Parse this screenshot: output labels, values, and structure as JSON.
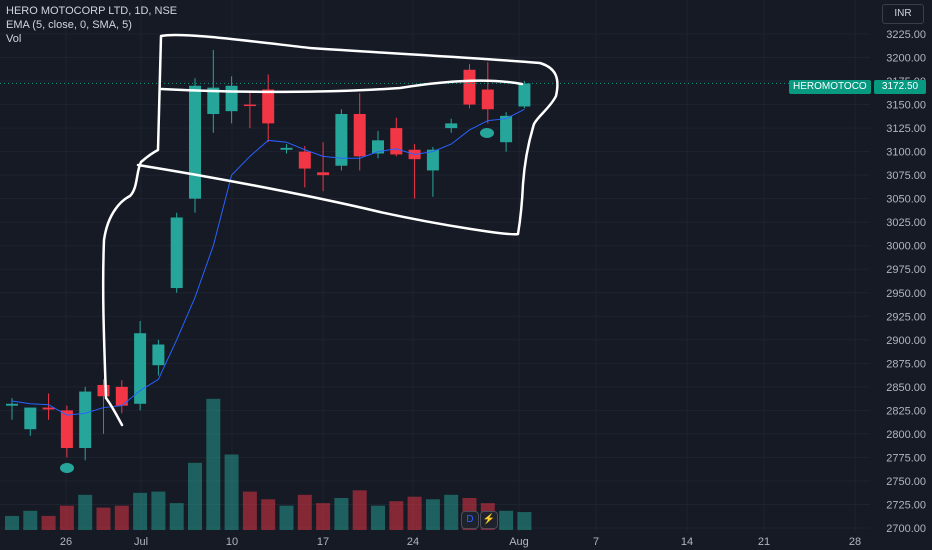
{
  "legend": {
    "title": "HERO MOTOCORP LTD, 1D, NSE",
    "ema": "EMA (5, close, 0, SMA, 5)",
    "vol": "Vol"
  },
  "currency": "INR",
  "symbol_tag": "HEROMOTOCO",
  "last_price": "3172.50",
  "colors": {
    "up": "#26a69a",
    "down": "#f23645",
    "ema": "#2962ff",
    "annotation": "#ffffff",
    "tag": "#089981"
  },
  "icons": [
    "dividend-icon",
    "earnings-flash-icon"
  ],
  "icon_labels": {
    "dividend": "D",
    "flash": "⚡"
  },
  "chart_data": {
    "type": "candlestick",
    "y_ticks": [
      "2700.00",
      "2725.00",
      "2750.00",
      "2775.00",
      "2800.00",
      "2825.00",
      "2850.00",
      "2875.00",
      "2900.00",
      "2925.00",
      "2950.00",
      "2975.00",
      "3000.00",
      "3025.00",
      "3050.00",
      "3075.00",
      "3100.00",
      "3125.00",
      "3150.00",
      "3175.00",
      "3200.00",
      "3225.00"
    ],
    "ylim": [
      2700,
      3237
    ],
    "x_ticks": [
      "26",
      "Jul",
      "10",
      "17",
      "24",
      "Aug",
      "7",
      "14",
      "21",
      "28"
    ],
    "candles": [
      {
        "o": 2830,
        "h": 2838,
        "l": 2815,
        "c": 2832
      },
      {
        "o": 2805,
        "h": 2828,
        "l": 2798,
        "c": 2828
      },
      {
        "o": 2828,
        "h": 2843,
        "l": 2815,
        "c": 2826
      },
      {
        "o": 2825,
        "h": 2830,
        "l": 2775,
        "c": 2785
      },
      {
        "o": 2785,
        "h": 2850,
        "l": 2772,
        "c": 2845
      },
      {
        "o": 2852,
        "h": 2858,
        "l": 2800,
        "c": 2840
      },
      {
        "o": 2850,
        "h": 2857,
        "l": 2822,
        "c": 2830
      },
      {
        "o": 2832,
        "h": 2920,
        "l": 2825,
        "c": 2907
      },
      {
        "o": 2873,
        "h": 2900,
        "l": 2862,
        "c": 2895
      },
      {
        "o": 2955,
        "h": 3035,
        "l": 2950,
        "c": 3030
      },
      {
        "o": 3050,
        "h": 3178,
        "l": 3035,
        "c": 3170
      },
      {
        "o": 3140,
        "h": 3208,
        "l": 3120,
        "c": 3168
      },
      {
        "o": 3143,
        "h": 3180,
        "l": 3130,
        "c": 3170
      },
      {
        "o": 3150,
        "h": 3165,
        "l": 3125,
        "c": 3149
      },
      {
        "o": 3166,
        "h": 3182,
        "l": 3110,
        "c": 3130
      },
      {
        "o": 3102,
        "h": 3108,
        "l": 3098,
        "c": 3104
      },
      {
        "o": 3100,
        "h": 3106,
        "l": 3062,
        "c": 3082
      },
      {
        "o": 3078,
        "h": 3110,
        "l": 3058,
        "c": 3075
      },
      {
        "o": 3085,
        "h": 3145,
        "l": 3080,
        "c": 3140
      },
      {
        "o": 3140,
        "h": 3162,
        "l": 3080,
        "c": 3095
      },
      {
        "o": 3098,
        "h": 3122,
        "l": 3093,
        "c": 3112
      },
      {
        "o": 3125,
        "h": 3136,
        "l": 3095,
        "c": 3097
      },
      {
        "o": 3102,
        "h": 3108,
        "l": 3050,
        "c": 3092
      },
      {
        "o": 3080,
        "h": 3105,
        "l": 3052,
        "c": 3102
      },
      {
        "o": 3125,
        "h": 3135,
        "l": 3120,
        "c": 3130
      },
      {
        "o": 3187,
        "h": 3193,
        "l": 3146,
        "c": 3150
      },
      {
        "o": 3166,
        "h": 3195,
        "l": 3130,
        "c": 3145
      },
      {
        "o": 3110,
        "h": 3142,
        "l": 3100,
        "c": 3138
      },
      {
        "o": 3148,
        "h": 3175,
        "l": 3146,
        "c": 3172.5
      }
    ],
    "ema": [
      2835,
      2832,
      2831,
      2820,
      2822,
      2828,
      2830,
      2846,
      2858,
      2900,
      2945,
      3000,
      3075,
      3095,
      3112,
      3110,
      3102,
      3095,
      3093,
      3093,
      3100,
      3103,
      3097,
      3100,
      3108,
      3123,
      3133,
      3135,
      3145
    ],
    "volume_rel": [
      0.22,
      0.3,
      0.22,
      0.38,
      0.55,
      0.35,
      0.38,
      0.58,
      0.6,
      0.42,
      1.05,
      2.05,
      1.18,
      0.6,
      0.48,
      0.38,
      0.55,
      0.42,
      0.5,
      0.62,
      0.38,
      0.45,
      0.52,
      0.48,
      0.55,
      0.5,
      0.42,
      0.3,
      0.28
    ]
  }
}
